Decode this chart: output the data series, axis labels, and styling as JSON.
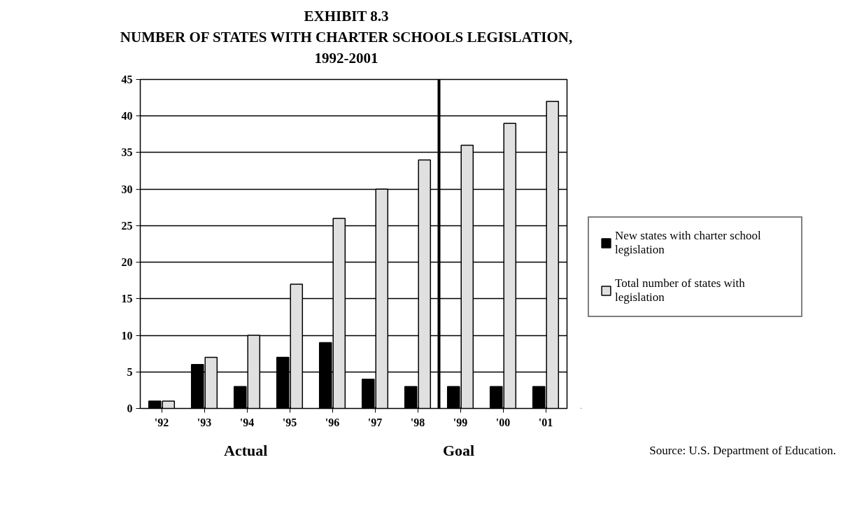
{
  "chart_data": {
    "type": "bar",
    "title": "EXHIBIT 8.3",
    "subtitle": "NUMBER OF STATES WITH CHARTER SCHOOLS LEGISLATION, 1992-2001",
    "x": [
      1992,
      1993,
      1994,
      1995,
      1996,
      1997,
      1998,
      1999,
      2000,
      2001
    ],
    "xlim": [
      1991.5,
      2001.5
    ],
    "xticks": [
      {
        "value": 1992,
        "label": "'92"
      },
      {
        "value": 1993,
        "label": "'93"
      },
      {
        "value": 1994,
        "label": "'94"
      },
      {
        "value": 1995,
        "label": "'95"
      },
      {
        "value": 1996,
        "label": "'96"
      },
      {
        "value": 1997,
        "label": "'97"
      },
      {
        "value": 1998,
        "label": "'98"
      },
      {
        "value": 1999,
        "label": "'99"
      },
      {
        "value": 2000,
        "label": "'00"
      },
      {
        "value": 2001,
        "label": "'01"
      }
    ],
    "ylim": [
      0,
      45
    ],
    "yticks": [
      0,
      5,
      10,
      15,
      20,
      25,
      30,
      35,
      40,
      45
    ],
    "series": [
      {
        "name": "New states with charter school legislation",
        "color": "#000000",
        "values": [
          1,
          6,
          3,
          7,
          9,
          4,
          3,
          3,
          3,
          3
        ]
      },
      {
        "name": "Total number of states with legislation",
        "color": "#e0e0e0",
        "values": [
          1,
          7,
          10,
          17,
          26,
          30,
          34,
          36,
          39,
          42
        ]
      }
    ],
    "ref_lines": [
      {
        "axis": "x",
        "value": 1998.5,
        "label": null,
        "color": "#000000"
      }
    ],
    "annotations": [
      "Actual",
      "Goal",
      "Source: U.S. Department of Education."
    ],
    "grid": "y",
    "legend": "right"
  }
}
